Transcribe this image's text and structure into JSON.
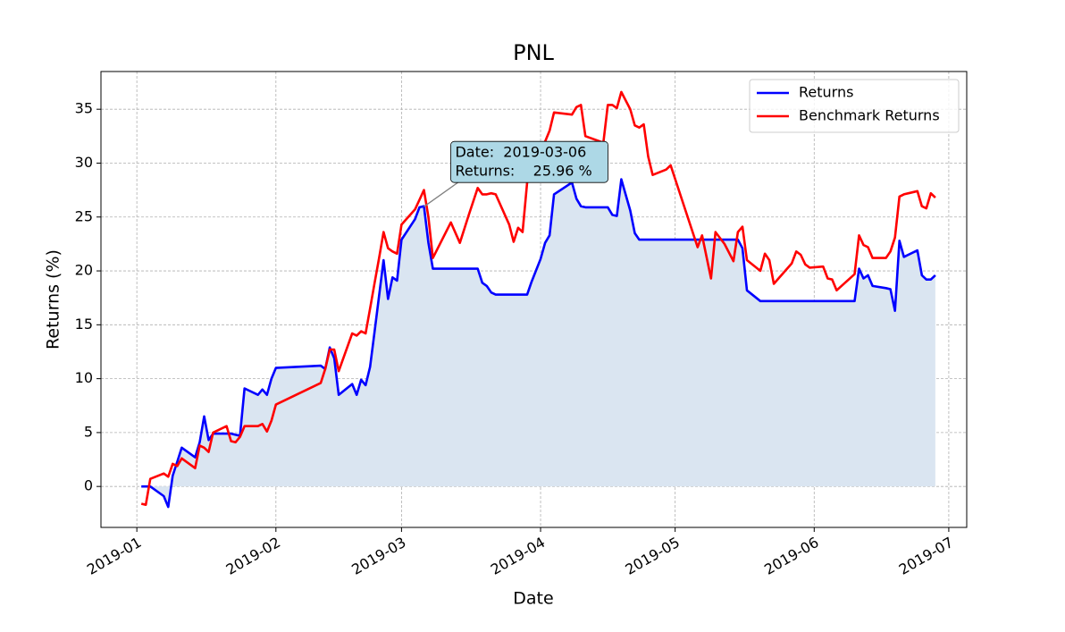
{
  "chart_data": {
    "type": "line",
    "title": "PNL",
    "x_label": "Date",
    "y_label": "Returns (%)",
    "x": [
      "2019-01-02",
      "2019-01-03",
      "2019-01-04",
      "2019-01-07",
      "2019-01-08",
      "2019-01-09",
      "2019-01-10",
      "2019-01-11",
      "2019-01-14",
      "2019-01-15",
      "2019-01-16",
      "2019-01-17",
      "2019-01-18",
      "2019-01-21",
      "2019-01-22",
      "2019-01-23",
      "2019-01-24",
      "2019-01-25",
      "2019-01-28",
      "2019-01-29",
      "2019-01-30",
      "2019-01-31",
      "2019-02-01",
      "2019-02-11",
      "2019-02-12",
      "2019-02-13",
      "2019-02-14",
      "2019-02-15",
      "2019-02-18",
      "2019-02-19",
      "2019-02-20",
      "2019-02-21",
      "2019-02-22",
      "2019-02-23",
      "2019-02-24",
      "2019-02-25",
      "2019-02-26",
      "2019-02-27",
      "2019-02-28",
      "2019-03-01",
      "2019-03-04",
      "2019-03-05",
      "2019-03-06",
      "2019-03-07",
      "2019-03-08",
      "2019-03-12",
      "2019-03-14",
      "2019-03-16",
      "2019-03-18",
      "2019-03-19",
      "2019-03-20",
      "2019-03-21",
      "2019-03-22",
      "2019-03-25",
      "2019-03-26",
      "2019-03-27",
      "2019-03-28",
      "2019-03-29",
      "2019-03-30",
      "2019-04-01",
      "2019-04-02",
      "2019-04-03",
      "2019-04-04",
      "2019-04-08",
      "2019-04-09",
      "2019-04-10",
      "2019-04-11",
      "2019-04-15",
      "2019-04-16",
      "2019-04-17",
      "2019-04-18",
      "2019-04-19",
      "2019-04-21",
      "2019-04-22",
      "2019-04-23",
      "2019-04-24",
      "2019-04-25",
      "2019-04-26",
      "2019-04-29",
      "2019-04-30",
      "2019-05-06",
      "2019-05-07",
      "2019-05-09",
      "2019-05-10",
      "2019-05-12",
      "2019-05-14",
      "2019-05-15",
      "2019-05-16",
      "2019-05-17",
      "2019-05-20",
      "2019-05-21",
      "2019-05-22",
      "2019-05-23",
      "2019-05-27",
      "2019-05-28",
      "2019-05-29",
      "2019-05-30",
      "2019-05-31",
      "2019-06-03",
      "2019-06-04",
      "2019-06-05",
      "2019-06-06",
      "2019-06-10",
      "2019-06-11",
      "2019-06-12",
      "2019-06-13",
      "2019-06-14",
      "2019-06-17",
      "2019-06-18",
      "2019-06-19",
      "2019-06-20",
      "2019-06-21",
      "2019-06-24",
      "2019-06-25",
      "2019-06-26",
      "2019-06-27",
      "2019-06-28"
    ],
    "series": [
      {
        "name": "Returns",
        "color": "#0000ff",
        "fill": "#dae5f1",
        "values": [
          0.0,
          0.0,
          0.0,
          -0.9,
          -1.9,
          1.0,
          2.3,
          3.6,
          2.7,
          4.1,
          6.5,
          4.3,
          4.9,
          4.9,
          4.9,
          4.8,
          4.7,
          9.1,
          8.5,
          9.0,
          8.5,
          10.0,
          11.0,
          11.2,
          10.9,
          12.9,
          11.9,
          8.5,
          9.5,
          8.5,
          9.9,
          9.4,
          11.1,
          14.4,
          17.7,
          21.0,
          17.4,
          19.4,
          19.1,
          22.9,
          24.8,
          25.9,
          26.0,
          22.6,
          20.2,
          20.2,
          20.2,
          20.2,
          20.2,
          18.9,
          18.6,
          18.0,
          17.8,
          17.8,
          17.8,
          17.8,
          17.8,
          17.8,
          19.0,
          21.1,
          22.6,
          23.3,
          27.1,
          28.2,
          26.7,
          26.0,
          25.9,
          25.9,
          25.9,
          25.2,
          25.1,
          28.5,
          25.6,
          23.5,
          22.9,
          22.9,
          22.9,
          22.9,
          22.9,
          22.9,
          22.9,
          22.9,
          22.9,
          22.9,
          22.9,
          22.9,
          22.9,
          22.1,
          18.2,
          17.2,
          17.2,
          17.2,
          17.2,
          17.2,
          17.2,
          17.2,
          17.2,
          17.2,
          17.2,
          17.2,
          17.2,
          17.2,
          17.2,
          20.2,
          19.3,
          19.6,
          18.6,
          18.4,
          18.3,
          16.3,
          22.8,
          21.3,
          21.9,
          19.6,
          19.2,
          19.2,
          19.6
        ]
      },
      {
        "name": "Benchmark Returns",
        "color": "#ff0000",
        "values": [
          -1.6,
          -1.7,
          0.7,
          1.2,
          0.9,
          2.1,
          1.9,
          2.6,
          1.7,
          3.8,
          3.6,
          3.2,
          5.0,
          5.6,
          4.2,
          4.1,
          4.6,
          5.6,
          5.6,
          5.8,
          5.1,
          6.1,
          7.6,
          9.6,
          10.9,
          12.7,
          12.7,
          10.7,
          14.2,
          14.0,
          14.4,
          14.2,
          16.5,
          18.9,
          21.2,
          23.6,
          22.1,
          21.8,
          21.6,
          24.3,
          25.7,
          26.6,
          27.5,
          25.0,
          21.2,
          24.5,
          22.6,
          25.2,
          27.7,
          27.1,
          27.1,
          27.2,
          27.1,
          24.3,
          22.7,
          24.0,
          23.6,
          28.2,
          30.4,
          31.2,
          32.0,
          33.0,
          34.7,
          34.5,
          35.2,
          35.4,
          32.5,
          31.9,
          35.4,
          35.4,
          35.1,
          36.6,
          35.0,
          33.5,
          33.3,
          33.6,
          30.6,
          28.9,
          29.4,
          29.8,
          22.2,
          23.3,
          19.3,
          23.6,
          22.5,
          20.9,
          23.6,
          24.1,
          21.0,
          20.0,
          21.6,
          21.0,
          18.8,
          20.7,
          21.8,
          21.5,
          20.6,
          20.3,
          20.4,
          19.3,
          19.2,
          18.2,
          19.7,
          23.3,
          22.4,
          22.2,
          21.2,
          21.2,
          21.8,
          23.1,
          26.9,
          27.1,
          27.4,
          26.0,
          25.8,
          27.2,
          26.8
        ]
      }
    ],
    "xlim": [
      "2018-12-24",
      "2019-07-05"
    ],
    "xticks": [
      {
        "value": "2019-01-01",
        "label": "2019-01"
      },
      {
        "value": "2019-02-01",
        "label": "2019-02"
      },
      {
        "value": "2019-03-01",
        "label": "2019-03"
      },
      {
        "value": "2019-04-01",
        "label": "2019-04"
      },
      {
        "value": "2019-05-01",
        "label": "2019-05"
      },
      {
        "value": "2019-06-01",
        "label": "2019-06"
      },
      {
        "value": "2019-07-01",
        "label": "2019-07"
      }
    ],
    "ylim": [
      -3.8,
      38.5
    ],
    "yticks": [
      0,
      5,
      10,
      15,
      20,
      25,
      30,
      35
    ],
    "grid": true,
    "legend": "upper-right",
    "annotation": {
      "x": "2019-03-06",
      "y": 25.96,
      "lines": [
        "Date:  2019-03-06",
        "Returns:    25.96 %"
      ],
      "color": "#add8e6"
    }
  }
}
